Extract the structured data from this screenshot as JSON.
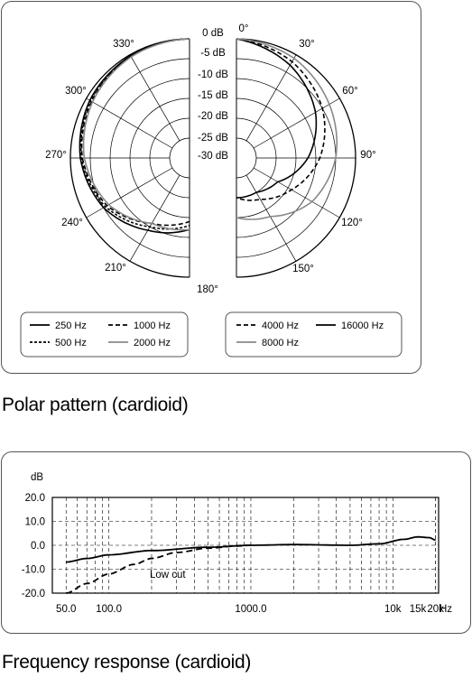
{
  "captions": {
    "polar": "Polar pattern (cardioid)",
    "frequency": "Frequency response (cardioid)"
  },
  "chart_data": [
    {
      "type": "polar",
      "angle_labels": [
        "0°",
        "30°",
        "60°",
        "90°",
        "120°",
        "150°",
        "180°",
        "210°",
        "240°",
        "270°",
        "300°",
        "330°"
      ],
      "db_labels": [
        "0 dB",
        "-5 dB",
        "-10 dB",
        "-15 dB",
        "-20 dB",
        "-25 dB",
        "-30 dB"
      ],
      "rlim": [
        -30,
        0
      ],
      "grid": true,
      "legend_left": [
        {
          "name": "250 Hz",
          "style": "solid",
          "color": "#000000"
        },
        {
          "name": "1000 Hz",
          "style": "dashed",
          "color": "#000000"
        },
        {
          "name": "500 Hz",
          "style": "dotted-dashed",
          "color": "#000000"
        },
        {
          "name": "2000 Hz",
          "style": "solid",
          "color": "#888888"
        }
      ],
      "legend_right": [
        {
          "name": "4000 Hz",
          "style": "dashed",
          "color": "#000000"
        },
        {
          "name": "16000 Hz",
          "style": "solid",
          "color": "#000000"
        },
        {
          "name": "8000 Hz",
          "style": "solid",
          "color": "#888888"
        }
      ],
      "series_left": [
        {
          "name": "250 Hz",
          "angles": [
            0,
            30,
            60,
            90,
            120,
            150,
            180
          ],
          "db": [
            0,
            -0.3,
            -1,
            -2.5,
            -5,
            -9,
            -12
          ]
        },
        {
          "name": "500 Hz",
          "angles": [
            0,
            30,
            60,
            90,
            120,
            150,
            180
          ],
          "db": [
            0,
            -0.4,
            -1.2,
            -2.8,
            -5.5,
            -10,
            -13
          ]
        },
        {
          "name": "1000 Hz",
          "angles": [
            0,
            30,
            60,
            90,
            120,
            150,
            180
          ],
          "db": [
            0,
            -0.5,
            -1.5,
            -3,
            -6,
            -11,
            -14
          ]
        },
        {
          "name": "2000 Hz",
          "angles": [
            0,
            30,
            60,
            90,
            120,
            150,
            180
          ],
          "db": [
            0,
            -0.6,
            -1.8,
            -3.5,
            -6.5,
            -11,
            -12
          ]
        }
      ],
      "series_right": [
        {
          "name": "4000 Hz",
          "angles": [
            0,
            30,
            60,
            90,
            120,
            150,
            180
          ],
          "db": [
            0,
            -2,
            -5,
            -9,
            -14,
            -18,
            -20
          ]
        },
        {
          "name": "16000 Hz",
          "angles": [
            0,
            30,
            60,
            90,
            120,
            150,
            180
          ],
          "db": [
            0,
            -3,
            -7,
            -12,
            -18,
            -20,
            -20
          ]
        },
        {
          "name": "8000 Hz",
          "angles": [
            0,
            30,
            60,
            90,
            120,
            150,
            180
          ],
          "db": [
            0,
            -1,
            -3,
            -5,
            -8,
            -13,
            -15
          ]
        }
      ]
    },
    {
      "type": "line",
      "ylabel": "dB",
      "xlabel": "Hz",
      "xscale": "log",
      "xlim": [
        40,
        21000
      ],
      "ylim": [
        -20,
        20
      ],
      "yticks": [
        "20.0",
        "10.0",
        "0.0",
        "-10.0",
        "-20.0"
      ],
      "xticks": [
        {
          "value": 50,
          "label": "50.0"
        },
        {
          "value": 100,
          "label": "100.0"
        },
        {
          "value": 1000,
          "label": "1000.0"
        },
        {
          "value": 10000,
          "label": "10k"
        },
        {
          "value": 15000,
          "label": "15k"
        },
        {
          "value": 20000,
          "label": "20k"
        }
      ],
      "grid": true,
      "annotation": "Low cut",
      "series": [
        {
          "style": "solid",
          "x": [
            50,
            70,
            100,
            200,
            500,
            1000,
            2000,
            5000,
            8000,
            12000,
            15000,
            18000,
            20000
          ],
          "y": [
            -7,
            -5.5,
            -4,
            -2.2,
            -0.8,
            0,
            0.3,
            0,
            0.6,
            2.5,
            3.5,
            3.2,
            2.2
          ]
        },
        {
          "style": "dashed",
          "x": [
            50,
            70,
            100,
            150,
            200,
            300,
            500,
            800,
            1000
          ],
          "y": [
            -20,
            -16,
            -12,
            -8,
            -5.5,
            -3,
            -1.2,
            -0.3,
            0
          ]
        }
      ]
    }
  ]
}
